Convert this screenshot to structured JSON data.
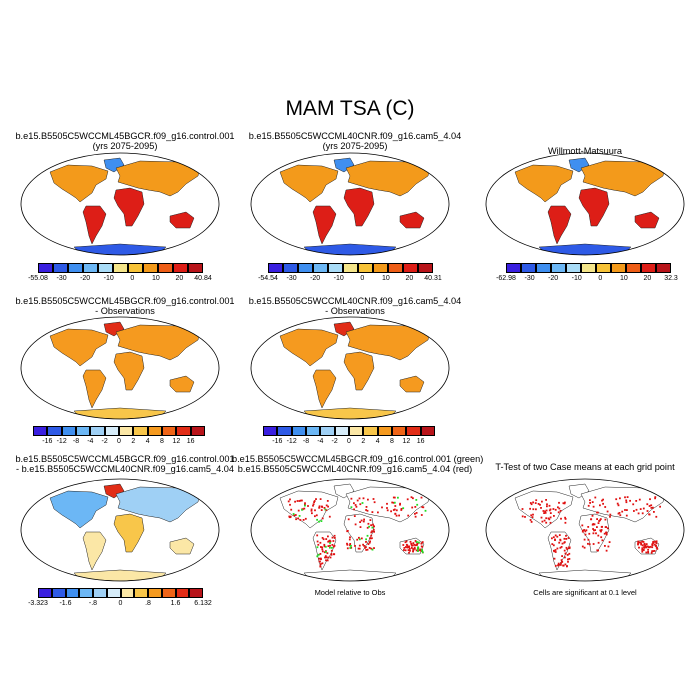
{
  "title": "MAM TSA (C)",
  "panels": [
    {
      "title_line1": "b.e15.B5505C5WCCML45BGCR.f09_g16.control.001",
      "title_line2": "(yrs 2075-2095)",
      "colorbar": {
        "min": "-55.08",
        "max": "40.84",
        "ticks": [
          "-30",
          "-20",
          "-10",
          "0",
          "10",
          "20"
        ]
      }
    },
    {
      "title_line1": "b.e15.B5505C5WCCML40CNR.f09_g16.cam5_4.04",
      "title_line2": "(yrs 2075-2095)",
      "colorbar": {
        "min": "-54.54",
        "max": "40.31",
        "ticks": [
          "-30",
          "-20",
          "-10",
          "0",
          "10",
          "20"
        ]
      }
    },
    {
      "title_line1": "Willmott-Matsuura",
      "title_line2": "",
      "colorbar": {
        "min": "-62.98",
        "max": "32.3",
        "ticks": [
          "-30",
          "-20",
          "-10",
          "0",
          "10",
          "20"
        ]
      }
    },
    {
      "title_line1": "b.e15.B5505C5WCCML45BGCR.f09_g16.control.001",
      "title_line2": "- Observations",
      "colorbar": {
        "ticks": [
          "-16",
          "-12",
          "-8",
          "-4",
          "-2",
          "0",
          "2",
          "4",
          "8",
          "12",
          "16"
        ]
      }
    },
    {
      "title_line1": "b.e15.B5505C5WCCML40CNR.f09_g16.cam5_4.04",
      "title_line2": "- Observations",
      "colorbar": {
        "ticks": [
          "-16",
          "-12",
          "-8",
          "-4",
          "-2",
          "0",
          "2",
          "4",
          "8",
          "12",
          "16"
        ]
      }
    },
    {
      "title_line1": "b.e15.B5505C5WCCML45BGCR.f09_g16.control.001",
      "title_line2": "- b.e15.B5505C5WCCML40CNR.f09_g16.cam5_4.04",
      "colorbar": {
        "min": "-3.323",
        "max": "6.132",
        "ticks": [
          "-1.6",
          "-.8",
          "0",
          ".8",
          "1.6"
        ]
      }
    },
    {
      "title_line1": "b.e15.B5505C5WCCML45BGCR.f09_g16.control.001 (green)",
      "title_line2": "b.e15.B5505C5WCCML40CNR.f09_g16.cam5_4.04 (red)",
      "note": "Model relative to Obs"
    },
    {
      "title_line1": "T-Test of two Case means at each grid point",
      "title_line2": "",
      "note": "Cells are significant at 0.1 level"
    }
  ],
  "colors": {
    "abs_scale": [
      "#3a1fe0",
      "#2e5ae6",
      "#3f8ff0",
      "#6cb7f5",
      "#a9dcf7",
      "#f4e58a",
      "#f7c338",
      "#f39a1b",
      "#ee5d16",
      "#dd1e17",
      "#b8141a"
    ],
    "diff_scale": [
      "#3a1fe0",
      "#2e5ae6",
      "#3f8ff0",
      "#6cb7f5",
      "#9fd0f5",
      "#d6ecf9",
      "#fbe7a6",
      "#f8c64a",
      "#f59a1f",
      "#ef6417",
      "#e12c16",
      "#b8141a"
    ],
    "sig_red": "#e01010",
    "sig_green": "#22dd22"
  }
}
